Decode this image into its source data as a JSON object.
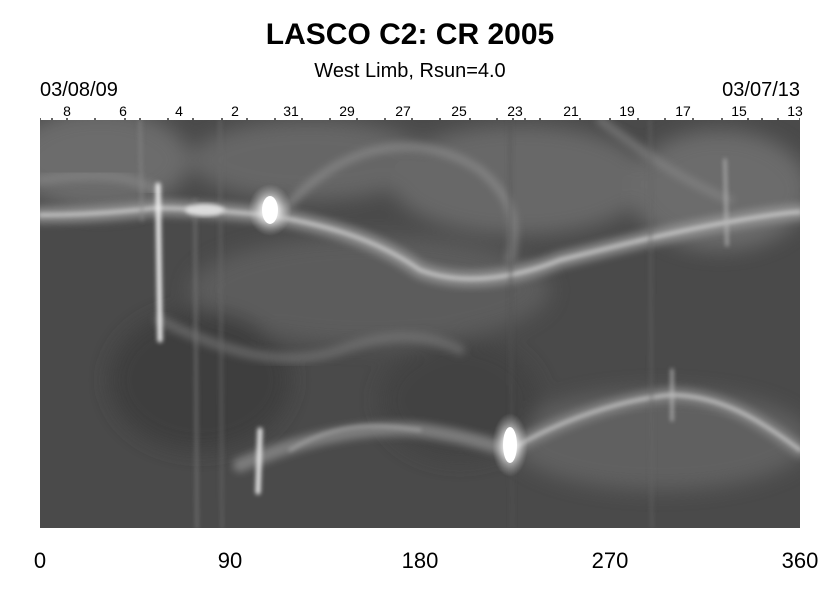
{
  "title": "LASCO C2: CR 2005",
  "subtitle": "West Limb, Rsun=4.0",
  "date_start": "03/08/09",
  "date_end": "03/07/13",
  "day_labels": [
    "8",
    "6",
    "4",
    "2",
    "31",
    "29",
    "27",
    "25",
    "23",
    "21",
    "19",
    "17",
    "15",
    "13"
  ],
  "x_ticks": [
    "0",
    "90",
    "180",
    "270",
    "360"
  ],
  "colors": {
    "background": "#ffffff",
    "panel_base": "#4d4d4d",
    "feature": "#ffffff"
  }
}
